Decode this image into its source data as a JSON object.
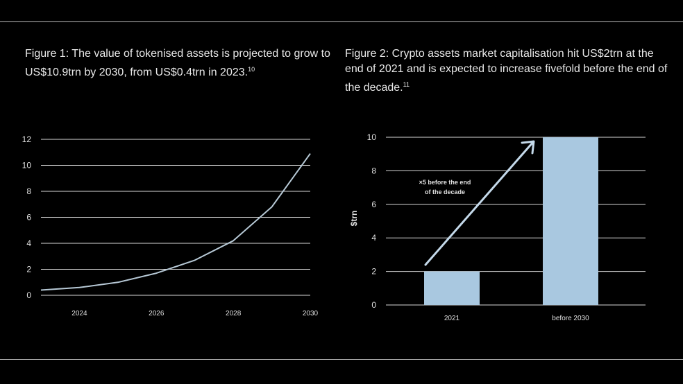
{
  "figure1": {
    "title": "Figure 1: The value of tokenised assets is projected to grow to US$10.9trn by 2030, from US$0.4trn in 2023.",
    "footnote": "10"
  },
  "figure2": {
    "title": "Figure 2: Crypto assets market capitalisation hit US$2trn at the end of 2021 and is expected to increase fivefold before the end of the decade.",
    "footnote": "11"
  },
  "chart_data": [
    {
      "type": "line",
      "title": "",
      "xlabel": "",
      "ylabel": "",
      "x": [
        2023,
        2024,
        2025,
        2026,
        2027,
        2028,
        2029,
        2030
      ],
      "series": [
        {
          "values": [
            0.4,
            0.6,
            1.0,
            1.7,
            2.7,
            4.2,
            6.8,
            10.9
          ]
        }
      ],
      "xticks": [
        "2024",
        "2026",
        "2028",
        "2030"
      ],
      "yticks": [
        0,
        2,
        4,
        6,
        8,
        10,
        12
      ],
      "xlim": [
        2023,
        2030
      ],
      "ylim": [
        0,
        12
      ],
      "grid": "horizontal",
      "colors": {
        "line": "#b7c9d6",
        "grid": "#d9d9d9",
        "text": "#e0e0e0"
      }
    },
    {
      "type": "bar",
      "title": "",
      "xlabel": "",
      "ylabel": "$trn",
      "categories": [
        "2021",
        "before 2030"
      ],
      "values": [
        2,
        10
      ],
      "yticks": [
        0,
        2,
        4,
        6,
        8,
        10
      ],
      "ylim": [
        0,
        10
      ],
      "grid": "horizontal",
      "annotation": {
        "lines": [
          "×5 before the end",
          "of the decade"
        ]
      },
      "colors": {
        "bar": "#a9c8e0",
        "arrow": "#c4d9ea",
        "grid": "#d9d9d9",
        "text": "#e0e0e0"
      }
    }
  ]
}
